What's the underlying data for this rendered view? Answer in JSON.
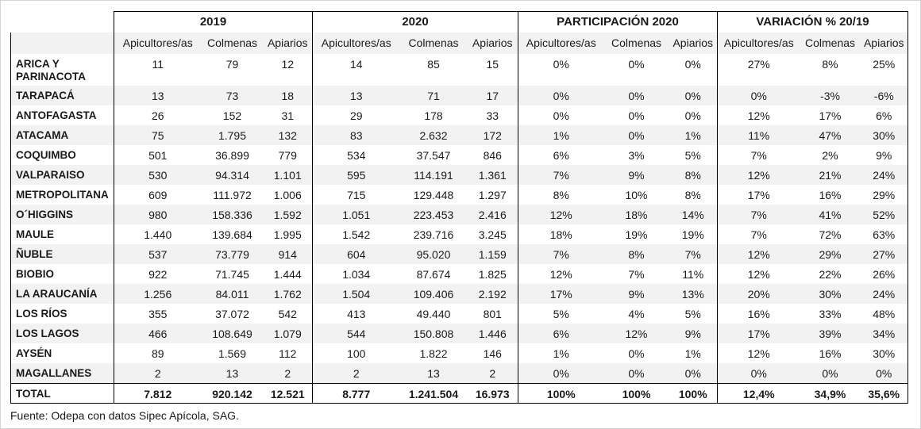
{
  "table": {
    "groups": [
      {
        "label": "2019"
      },
      {
        "label": "2020"
      },
      {
        "label": "PARTICIPACIÓN 2020"
      },
      {
        "label": "VARIACIÓN % 20/19"
      }
    ],
    "sub_headers": [
      "Apicultores/as",
      "Colmenas",
      "Apiarios"
    ],
    "rows": [
      {
        "region": "ARICA Y PARINACOTA",
        "values": [
          "11",
          "79",
          "12",
          "14",
          "85",
          "15",
          "0%",
          "0%",
          "0%",
          "27%",
          "8%",
          "25%"
        ]
      },
      {
        "region": "TARAPACÁ",
        "values": [
          "13",
          "73",
          "18",
          "13",
          "71",
          "17",
          "0%",
          "0%",
          "0%",
          "0%",
          "-3%",
          "-6%"
        ]
      },
      {
        "region": "ANTOFAGASTA",
        "values": [
          "26",
          "152",
          "31",
          "29",
          "178",
          "33",
          "0%",
          "0%",
          "0%",
          "12%",
          "17%",
          "6%"
        ]
      },
      {
        "region": "ATACAMA",
        "values": [
          "75",
          "1.795",
          "132",
          "83",
          "2.632",
          "172",
          "1%",
          "0%",
          "1%",
          "11%",
          "47%",
          "30%"
        ]
      },
      {
        "region": "COQUIMBO",
        "values": [
          "501",
          "36.899",
          "779",
          "534",
          "37.547",
          "846",
          "6%",
          "3%",
          "5%",
          "7%",
          "2%",
          "9%"
        ]
      },
      {
        "region": "VALPARAISO",
        "values": [
          "530",
          "94.314",
          "1.101",
          "595",
          "114.191",
          "1.361",
          "7%",
          "9%",
          "8%",
          "12%",
          "21%",
          "24%"
        ]
      },
      {
        "region": "METROPOLITANA",
        "values": [
          "609",
          "111.972",
          "1.006",
          "715",
          "129.448",
          "1.297",
          "8%",
          "10%",
          "8%",
          "17%",
          "16%",
          "29%"
        ]
      },
      {
        "region": "O´HIGGINS",
        "values": [
          "980",
          "158.336",
          "1.592",
          "1.051",
          "223.453",
          "2.416",
          "12%",
          "18%",
          "14%",
          "7%",
          "41%",
          "52%"
        ]
      },
      {
        "region": "MAULE",
        "values": [
          "1.440",
          "139.684",
          "1.995",
          "1.542",
          "239.716",
          "3.245",
          "18%",
          "19%",
          "19%",
          "7%",
          "72%",
          "63%"
        ]
      },
      {
        "region": "ÑUBLE",
        "values": [
          "537",
          "73.779",
          "914",
          "604",
          "95.020",
          "1.159",
          "7%",
          "8%",
          "7%",
          "12%",
          "29%",
          "27%"
        ]
      },
      {
        "region": "BIOBIO",
        "values": [
          "922",
          "71.745",
          "1.444",
          "1.034",
          "87.674",
          "1.825",
          "12%",
          "7%",
          "11%",
          "12%",
          "22%",
          "26%"
        ]
      },
      {
        "region": "LA ARAUCANÍA",
        "values": [
          "1.256",
          "84.011",
          "1.762",
          "1.504",
          "109.406",
          "2.192",
          "17%",
          "9%",
          "13%",
          "20%",
          "30%",
          "24%"
        ]
      },
      {
        "region": "LOS RÍOS",
        "values": [
          "355",
          "37.072",
          "542",
          "413",
          "49.440",
          "801",
          "5%",
          "4%",
          "5%",
          "16%",
          "33%",
          "48%"
        ]
      },
      {
        "region": "LOS LAGOS",
        "values": [
          "466",
          "108.649",
          "1.079",
          "544",
          "150.808",
          "1.446",
          "6%",
          "12%",
          "9%",
          "17%",
          "39%",
          "34%"
        ]
      },
      {
        "region": "AYSÉN",
        "values": [
          "89",
          "1.569",
          "112",
          "100",
          "1.822",
          "146",
          "1%",
          "0%",
          "1%",
          "12%",
          "16%",
          "30%"
        ]
      },
      {
        "region": "MAGALLANES",
        "values": [
          "2",
          "13",
          "2",
          "2",
          "13",
          "2",
          "0%",
          "0%",
          "0%",
          "0%",
          "0%",
          "0%"
        ]
      }
    ],
    "total": {
      "region": "TOTAL",
      "values": [
        "7.812",
        "920.142",
        "12.521",
        "8.777",
        "1.241.504",
        "16.973",
        "100%",
        "100%",
        "100%",
        "12,4%",
        "34,9%",
        "35,6%"
      ]
    }
  },
  "footer": {
    "source": "Fuente: Odepa con datos Sipec Apícola, SAG."
  }
}
